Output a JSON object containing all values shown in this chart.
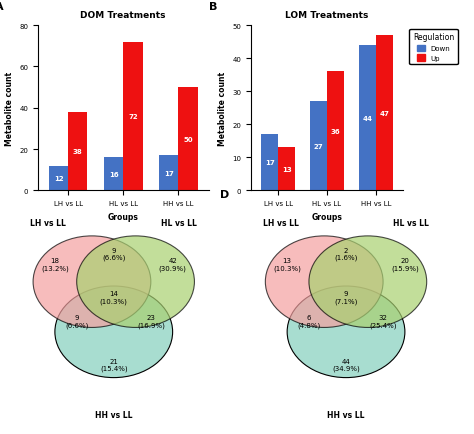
{
  "panel_A_title": "DOM Treatments",
  "panel_B_title": "LOM Treatments",
  "groups": [
    "LH vs LL",
    "HL vs LL",
    "HH vs LL"
  ],
  "xlabel": "Groups",
  "ylabel": "Metabolite count",
  "dom_down": [
    12,
    16,
    17
  ],
  "dom_up": [
    38,
    72,
    50
  ],
  "lom_down": [
    17,
    27,
    44
  ],
  "lom_up": [
    13,
    36,
    47
  ],
  "bar_down_color": "#4472C4",
  "bar_up_color": "#EE1111",
  "legend_down": "Down",
  "legend_up": "Up",
  "legend_title": "Regulation",
  "venn_C_values": [
    18,
    9,
    42,
    14,
    9,
    23,
    21
  ],
  "venn_C_pcts": [
    "13.2%",
    "6.6%",
    "30.9%",
    "10.3%",
    "6.6%",
    "16.9%",
    "15.4%"
  ],
  "venn_D_values": [
    13,
    2,
    20,
    9,
    6,
    32,
    44
  ],
  "venn_D_pcts": [
    "10.3%",
    "1.6%",
    "15.9%",
    "7.1%",
    "4.8%",
    "25.4%",
    "34.9%"
  ],
  "venn_pink": "#F4A0A0",
  "venn_green": "#A8D070",
  "venn_blue": "#A8DDD0",
  "bg_color": "#FFFFFF",
  "bar_ylim_A": [
    0,
    80
  ],
  "bar_ylim_B": [
    0,
    50
  ],
  "bar_yticks_A": [
    0,
    20,
    40,
    60,
    80
  ],
  "bar_yticks_B": [
    0,
    10,
    20,
    30,
    40,
    50
  ]
}
